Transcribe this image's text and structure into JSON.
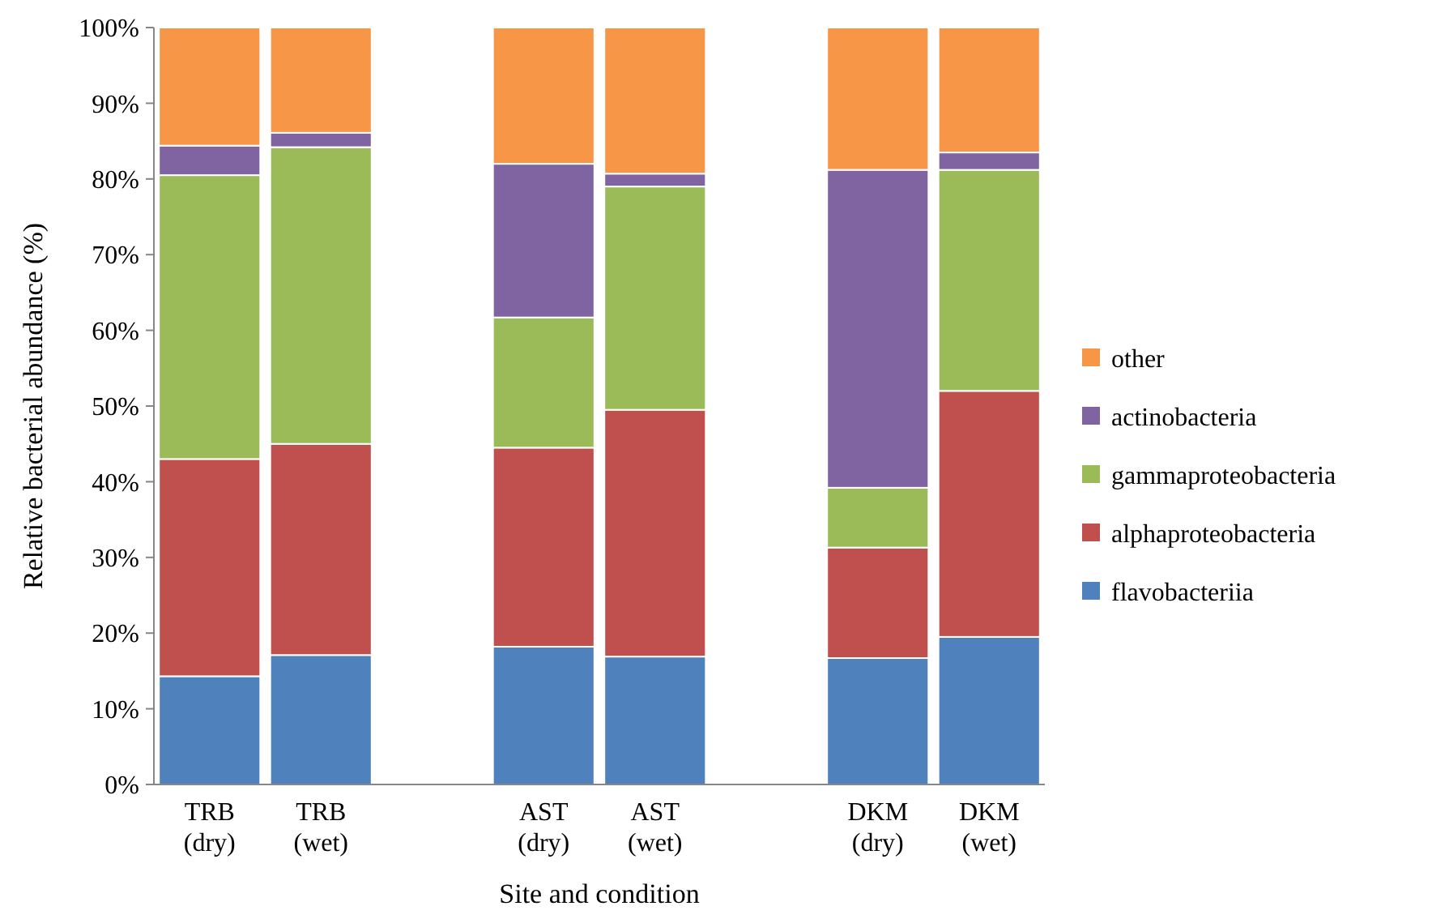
{
  "chart_data": {
    "type": "bar",
    "stacked": true,
    "xlabel": "Site and condition",
    "ylabel": "Relative bacterial abundance (%)",
    "categories": [
      "TRB (dry)",
      "TRB (wet)",
      null,
      "AST (dry)",
      "AST (wet)",
      null,
      "DKM (dry)",
      "DKM (wet)"
    ],
    "series": [
      {
        "name": "flavobacteriia",
        "color": "#4f81bd",
        "values": [
          14.3,
          17.1,
          null,
          18.2,
          16.9,
          null,
          16.7,
          19.5
        ]
      },
      {
        "name": "alphaproteobacteria",
        "color": "#c0504d",
        "values": [
          28.7,
          27.9,
          null,
          26.3,
          32.6,
          null,
          14.6,
          32.5
        ]
      },
      {
        "name": "gammaproteobacteria",
        "color": "#9bbb59",
        "values": [
          37.5,
          39.2,
          null,
          17.2,
          29.5,
          null,
          7.9,
          29.2
        ]
      },
      {
        "name": "actinobacteria",
        "color": "#8064a2",
        "values": [
          3.9,
          1.9,
          null,
          20.3,
          1.7,
          null,
          42.0,
          2.3
        ]
      },
      {
        "name": "other",
        "color": "#f79646",
        "values": [
          15.6,
          13.9,
          null,
          18.0,
          19.3,
          null,
          18.8,
          16.5
        ]
      }
    ],
    "ylim": [
      0,
      100
    ],
    "yticks": [
      {
        "value": 0,
        "label": "0%"
      },
      {
        "value": 10,
        "label": "10%"
      },
      {
        "value": 20,
        "label": "20%"
      },
      {
        "value": 30,
        "label": "30%"
      },
      {
        "value": 40,
        "label": "40%"
      },
      {
        "value": 50,
        "label": "50%"
      },
      {
        "value": 60,
        "label": "60%"
      },
      {
        "value": 70,
        "label": "70%"
      },
      {
        "value": 80,
        "label": "80%"
      },
      {
        "value": 90,
        "label": "90%"
      },
      {
        "value": 100,
        "label": "100%"
      }
    ],
    "legend": "right"
  }
}
